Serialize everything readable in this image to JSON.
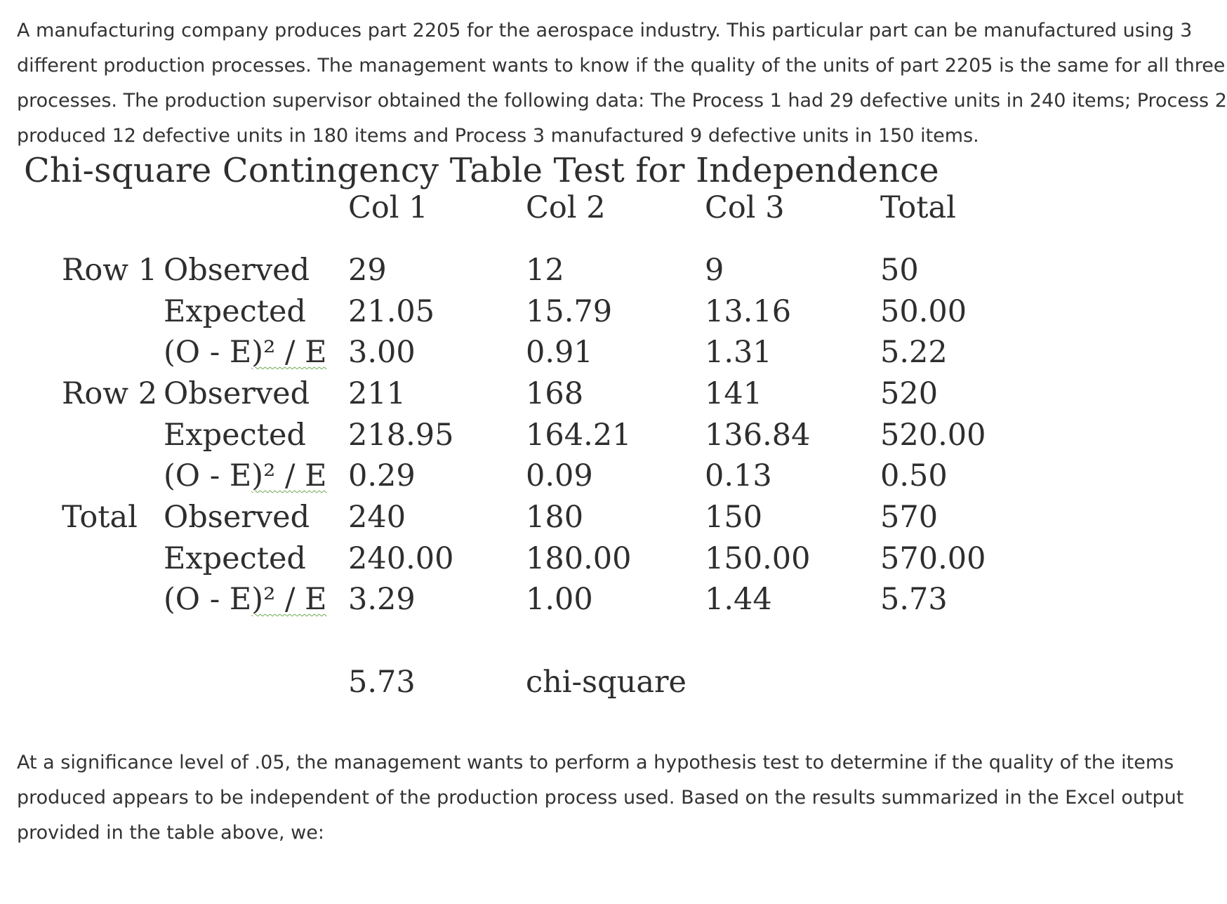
{
  "intro": {
    "lines": [
      "A manufacturing company produces part 2205 for the aerospace industry. This particular part can be manufactured using 3",
      "different production processes. The management wants to know if the quality of the units of part 2205 is the same for all three",
      "processes. The production supervisor obtained the following data: The Process 1 had 29 defective units in 240 items; Process 2",
      "produced 12 defective units in 180 items and Process 3 manufactured 9 defective units in 150 items."
    ]
  },
  "table": {
    "title": "Chi-square Contingency Table Test for Independence",
    "columns": [
      "Col 1",
      "Col 2",
      "Col 3",
      "Total"
    ],
    "blocks": [
      {
        "label": "Row 1",
        "rows": [
          {
            "metric": "Observed",
            "values": [
              "29",
              "12",
              "9",
              "50"
            ]
          },
          {
            "metric": "Expected",
            "values": [
              "21.05",
              "15.79",
              "13.16",
              "50.00"
            ]
          },
          {
            "metric_pre": "(O - E",
            "metric_post": ")² / E",
            "values": [
              "3.00",
              "0.91",
              "1.31",
              "5.22"
            ]
          }
        ]
      },
      {
        "label": "Row 2",
        "rows": [
          {
            "metric": "Observed",
            "values": [
              "211",
              "168",
              "141",
              "520"
            ]
          },
          {
            "metric": "Expected",
            "values": [
              "218.95",
              "164.21",
              "136.84",
              "520.00"
            ]
          },
          {
            "metric_pre": "(O - E",
            "metric_post": ")² / E",
            "values": [
              "0.29",
              "0.09",
              "0.13",
              "0.50"
            ]
          }
        ]
      },
      {
        "label": "Total",
        "rows": [
          {
            "metric": "Observed",
            "values": [
              "240",
              "180",
              "150",
              "570"
            ]
          },
          {
            "metric": "Expected",
            "values": [
              "240.00",
              "180.00",
              "150.00",
              "570.00"
            ]
          },
          {
            "metric_pre": "(O - E",
            "metric_post": ")² / E",
            "values": [
              "3.29",
              "1.00",
              "1.44",
              "5.73"
            ]
          }
        ]
      }
    ],
    "statistic_value": "5.73",
    "statistic_label": "chi-square"
  },
  "outro": {
    "lines": [
      "At a significance level of .05, the management wants to perform a hypothesis test to determine if the quality of the items",
      "produced appears to be independent of the production process used. Based on the results summarized in the Excel output",
      "provided in the table above, we:"
    ]
  }
}
